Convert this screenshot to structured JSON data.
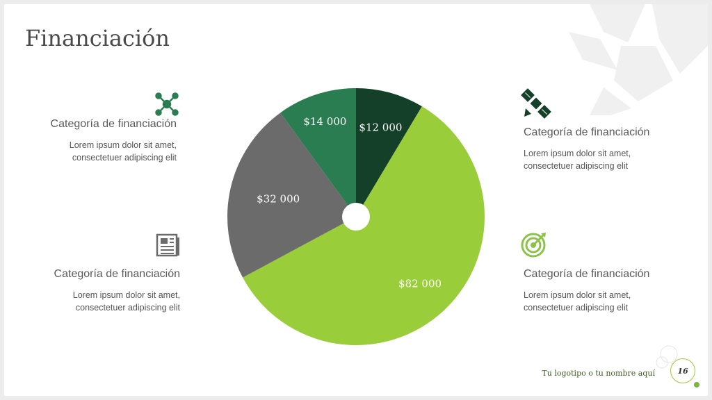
{
  "slide": {
    "title": "Financiación",
    "footer": "Tu logotipo o tu nombre aquí",
    "page_number": "16"
  },
  "categories": [
    {
      "title": "Categoría de financiación",
      "desc1": "Lorem ipsum dolor sit amet,",
      "desc2": "consectetuer adipiscing elit",
      "icon": "network-icon"
    },
    {
      "title": "Categoría de financiación",
      "desc1": "Lorem ipsum dolor sit amet,",
      "desc2": "consectetuer adipiscing elit",
      "icon": "newspaper-icon"
    },
    {
      "title": "Categoría de financiación",
      "desc1": "Lorem ipsum dolor sit amet,",
      "desc2": "consectetuer adipiscing elit",
      "icon": "satellite-icon"
    },
    {
      "title": "Categoría de financiación",
      "desc1": "Lorem ipsum dolor sit amet,",
      "desc2": "consectetuer adipiscing elit",
      "icon": "target-icon"
    }
  ],
  "colors": {
    "slice1": "#14402a",
    "slice2": "#9acd3a",
    "slice3": "#6b6b6b",
    "slice4": "#2a7d50",
    "icon_green": "#2a7d50",
    "icon_gray": "#6b6b6b",
    "icon_lime": "#8bc34a"
  },
  "chart_data": {
    "type": "pie",
    "categories": [
      "$12 000",
      "$82 000",
      "$32 000",
      "$14 000"
    ],
    "values": [
      12000,
      82000,
      32000,
      14000
    ],
    "labels": [
      "$12 000",
      "$82 000",
      "$32 000",
      "$14 000"
    ]
  }
}
